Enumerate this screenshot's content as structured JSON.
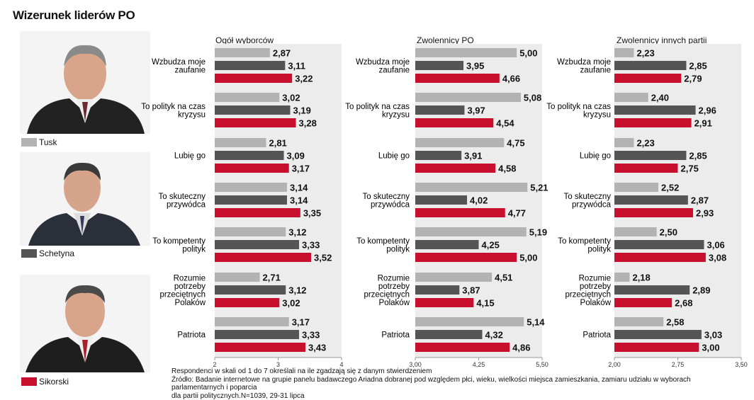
{
  "title": "Wizerunek liderów PO",
  "colors": {
    "tusk": "#b3b3b3",
    "schetyna": "#555555",
    "sikorski": "#c8102e",
    "panel_bg": "#ececec"
  },
  "legend": [
    {
      "name": "Tusk",
      "color": "#b3b3b3"
    },
    {
      "name": "Schetyna",
      "color": "#555555"
    },
    {
      "name": "Sikorski",
      "color": "#c8102e"
    }
  ],
  "notes": {
    "line1": "Respondenci w skali od 1 do 7 określali na ile zgadzają się z danym stwierdzeniem",
    "line2": "Źródło: Badanie internetowe na grupie panelu badawczego Ariadna dobranej pod względem płci, wieku, wielkości miejsca zamieszkania, zamiaru udziału w wyborach parlamentarnych i poparcia",
    "line3": "dla partii politycznych.N=1039, 29-31 lipca"
  },
  "chart_data": [
    {
      "type": "bar",
      "title": "Ogół wyborców",
      "categories": [
        "Wzbudza moje zaufanie",
        "To polityk na czas kryzysu",
        "Lubię go",
        "To skuteczny przywódca",
        "To kompetenty polityk",
        "Rozumie potrzeby przeciętnych Polaków",
        "Patriota"
      ],
      "series": [
        {
          "name": "Tusk",
          "values": [
            2.87,
            3.02,
            2.81,
            3.14,
            3.12,
            2.71,
            3.17
          ]
        },
        {
          "name": "Schetyna",
          "values": [
            3.11,
            3.19,
            3.09,
            3.14,
            3.33,
            3.12,
            3.33
          ]
        },
        {
          "name": "Sikorski",
          "values": [
            3.22,
            3.28,
            3.17,
            3.35,
            3.52,
            3.02,
            3.43
          ]
        }
      ],
      "xlim": [
        2,
        4
      ],
      "ticks": [
        "2",
        "3",
        "4"
      ]
    },
    {
      "type": "bar",
      "title": "Zwolennicy PO",
      "categories": [
        "Wzbudza moje zaufanie",
        "To polityk na czas kryzysu",
        "Lubię go",
        "To skuteczny przywódca",
        "To kompetenty polityk",
        "Rozumie potrzeby przeciętnych Polaków",
        "Patriota"
      ],
      "series": [
        {
          "name": "Tusk",
          "values": [
            5.0,
            5.08,
            4.75,
            5.21,
            5.19,
            4.51,
            5.14
          ]
        },
        {
          "name": "Schetyna",
          "values": [
            3.95,
            3.97,
            3.91,
            4.02,
            4.25,
            3.87,
            4.32
          ]
        },
        {
          "name": "Sikorski",
          "values": [
            4.66,
            4.54,
            4.58,
            4.77,
            5.0,
            4.15,
            4.86
          ]
        }
      ],
      "xlim": [
        3.0,
        5.5
      ],
      "ticks": [
        "3,00",
        "4,25",
        "5,50"
      ]
    },
    {
      "type": "bar",
      "title": "Zwolennicy innych partii",
      "categories": [
        "Wzbudza moje zaufanie",
        "To polityk na czas kryzysu",
        "Lubię go",
        "To skuteczny przywódca",
        "To kompetenty polityk",
        "Rozumie potrzeby przeciętnych Polaków",
        "Patriota"
      ],
      "series": [
        {
          "name": "Tusk",
          "values": [
            2.23,
            2.4,
            2.23,
            2.52,
            2.5,
            2.18,
            2.58
          ]
        },
        {
          "name": "Schetyna",
          "values": [
            2.85,
            2.96,
            2.85,
            2.87,
            3.06,
            2.89,
            3.03
          ]
        },
        {
          "name": "Sikorski",
          "values": [
            2.79,
            2.91,
            2.75,
            2.93,
            3.08,
            2.68,
            3.0
          ]
        }
      ],
      "xlim": [
        2.0,
        3.5
      ],
      "ticks": [
        "2,00",
        "2,75",
        "3,50"
      ]
    }
  ]
}
